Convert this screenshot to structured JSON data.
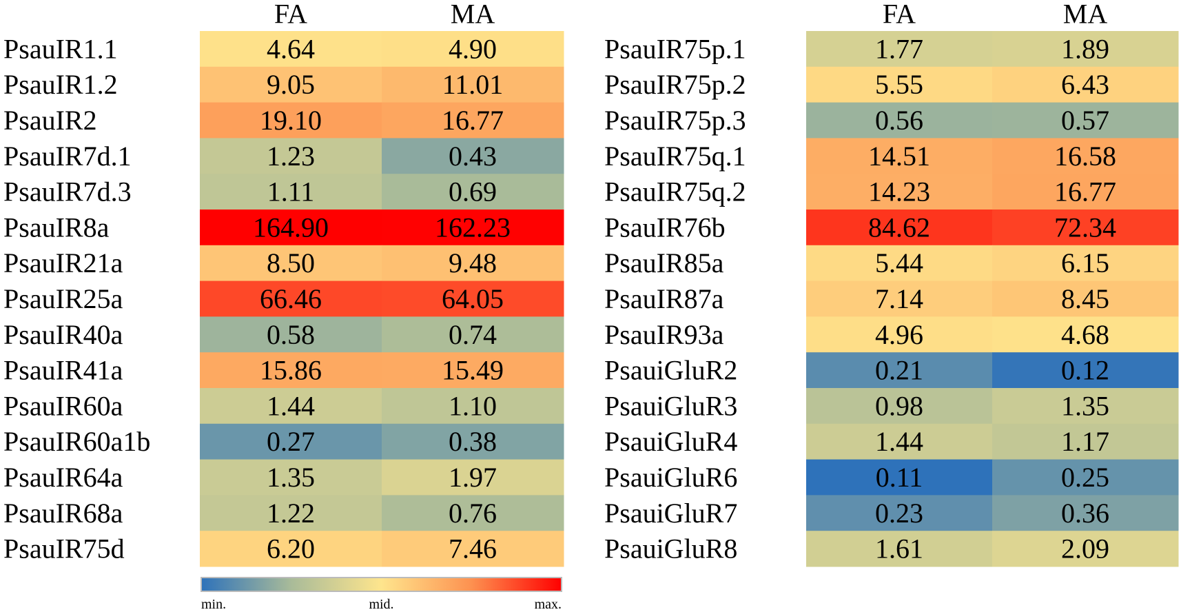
{
  "chart_data": [
    {
      "type": "heatmap",
      "log_scale": true,
      "columns": [
        "FA",
        "MA"
      ],
      "rows": [
        "PsauIR1.1",
        "PsauIR1.2",
        "PsauIR2",
        "PsauIR7d.1",
        "PsauIR7d.3",
        "PsauIR8a",
        "PsauIR21a",
        "PsauIR25a",
        "PsauIR40a",
        "PsauIR41a",
        "PsauIR60a",
        "PsauIR60a1b",
        "PsauIR64a",
        "PsauIR68a",
        "PsauIR75d"
      ],
      "values": [
        [
          4.64,
          4.9
        ],
        [
          9.05,
          11.01
        ],
        [
          19.1,
          16.77
        ],
        [
          1.23,
          0.43
        ],
        [
          1.11,
          0.69
        ],
        [
          164.9,
          162.23
        ],
        [
          8.5,
          9.48
        ],
        [
          66.46,
          64.05
        ],
        [
          0.58,
          0.74
        ],
        [
          15.86,
          15.49
        ],
        [
          1.44,
          1.1
        ],
        [
          0.27,
          0.38
        ],
        [
          1.35,
          1.97
        ],
        [
          1.22,
          0.76
        ],
        [
          6.2,
          7.46
        ]
      ],
      "value_labels": [
        [
          "4.64",
          "4.90"
        ],
        [
          "9.05",
          "11.01"
        ],
        [
          "19.10",
          "16.77"
        ],
        [
          "1.23",
          "0.43"
        ],
        [
          "1.11",
          "0.69"
        ],
        [
          "164.90",
          "162.23"
        ],
        [
          "8.50",
          "9.48"
        ],
        [
          "66.46",
          "64.05"
        ],
        [
          "0.58",
          "0.74"
        ],
        [
          "15.86",
          "15.49"
        ],
        [
          "1.44",
          "1.10"
        ],
        [
          "0.27",
          "0.38"
        ],
        [
          "1.35",
          "1.97"
        ],
        [
          "1.22",
          "0.76"
        ],
        [
          "6.20",
          "7.46"
        ]
      ],
      "colorbar": {
        "labels": [
          "min.",
          "mid.",
          "max."
        ],
        "colors": [
          "#2e72ba",
          "#a9bb99",
          "#fee58d",
          "#fd9150",
          "#ff0000"
        ]
      }
    },
    {
      "type": "heatmap",
      "log_scale": true,
      "columns": [
        "FA",
        "MA"
      ],
      "rows": [
        "PsauIR75p.1",
        "PsauIR75p.2",
        "PsauIR75p.3",
        "PsauIR75q.1",
        "PsauIR75q.2",
        "PsauIR76b",
        "PsauIR85a",
        "PsauIR87a",
        "PsauIR93a",
        "PsauiGluR2",
        "PsauiGluR3",
        "PsauiGluR4",
        "PsauiGluR6",
        "PsauiGluR7",
        "PsauiGluR8"
      ],
      "values": [
        [
          1.77,
          1.89
        ],
        [
          5.55,
          6.43
        ],
        [
          0.56,
          0.57
        ],
        [
          14.51,
          16.58
        ],
        [
          14.23,
          16.77
        ],
        [
          84.62,
          72.34
        ],
        [
          5.44,
          6.15
        ],
        [
          7.14,
          8.45
        ],
        [
          4.96,
          4.68
        ],
        [
          0.21,
          0.12
        ],
        [
          0.98,
          1.35
        ],
        [
          1.44,
          1.17
        ],
        [
          0.11,
          0.25
        ],
        [
          0.23,
          0.36
        ],
        [
          1.61,
          2.09
        ]
      ],
      "value_labels": [
        [
          "1.77",
          "1.89"
        ],
        [
          "5.55",
          "6.43"
        ],
        [
          "0.56",
          "0.57"
        ],
        [
          "14.51",
          "16.58"
        ],
        [
          "14.23",
          "16.77"
        ],
        [
          "84.62",
          "72.34"
        ],
        [
          "5.44",
          "6.15"
        ],
        [
          "7.14",
          "8.45"
        ],
        [
          "4.96",
          "4.68"
        ],
        [
          "0.21",
          "0.12"
        ],
        [
          "0.98",
          "1.35"
        ],
        [
          "1.44",
          "1.17"
        ],
        [
          "0.11",
          "0.25"
        ],
        [
          "0.23",
          "0.36"
        ],
        [
          "1.61",
          "2.09"
        ]
      ]
    }
  ]
}
